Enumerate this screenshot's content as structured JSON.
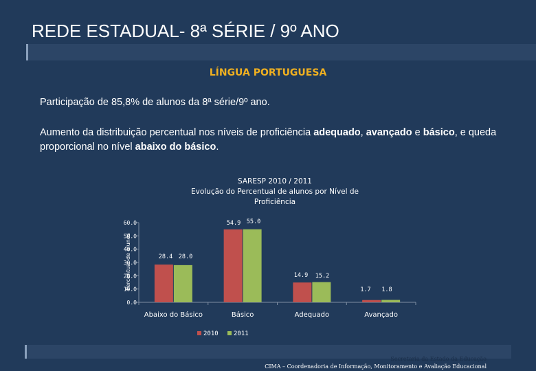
{
  "slide": {
    "title": "REDE ESTADUAL- 8ª SÉRIE / 9º ANO",
    "subject": "LÍNGUA PORTUGUESA",
    "participation": "Participação de 85,8% de alunos da 8ª série/9º ano.",
    "analysis": {
      "t1": "Aumento da distribuição percentual nos níveis de proficiência ",
      "b1": "adequado",
      "t2": ", ",
      "b2": "avançado",
      "t3": " e ",
      "b3": "básico",
      "t4": ", e queda proporcional no nível ",
      "b4": "abaixo do básico",
      "t5": "."
    },
    "footer": {
      "line1": "Secretaria da Estado da Educação",
      "line2": "CIMA – Coordenadoria de Informação, Monitoramento e Avaliação Educacional"
    }
  },
  "colors": {
    "series_2010": "#c0504d",
    "series_2011": "#9bbb59",
    "accent_title": "#f0b020"
  },
  "chart_data": {
    "type": "bar",
    "title_lines": [
      "SARESP 2010 / 2011",
      "Evolução do Percentual de alunos por Nível de",
      "Proficiência"
    ],
    "ylabel": "Percentual de alunos",
    "ylim": [
      0,
      60
    ],
    "yticks": [
      "0.0",
      "10.0",
      "20.0",
      "30.0",
      "40.0",
      "50.0",
      "60.0"
    ],
    "categories": [
      "Abaixo do Básico",
      "Básico",
      "Adequado",
      "Avançado"
    ],
    "series": [
      {
        "name": "2010",
        "values": [
          28.4,
          54.9,
          14.9,
          1.7
        ],
        "labels": [
          "28.4",
          "54.9",
          "14.9",
          "1.7"
        ]
      },
      {
        "name": "2011",
        "values": [
          28.0,
          55.0,
          15.2,
          1.8
        ],
        "labels": [
          "28.0",
          "55.0",
          "15.2",
          "1.8"
        ]
      }
    ],
    "legend_position": "bottom"
  }
}
